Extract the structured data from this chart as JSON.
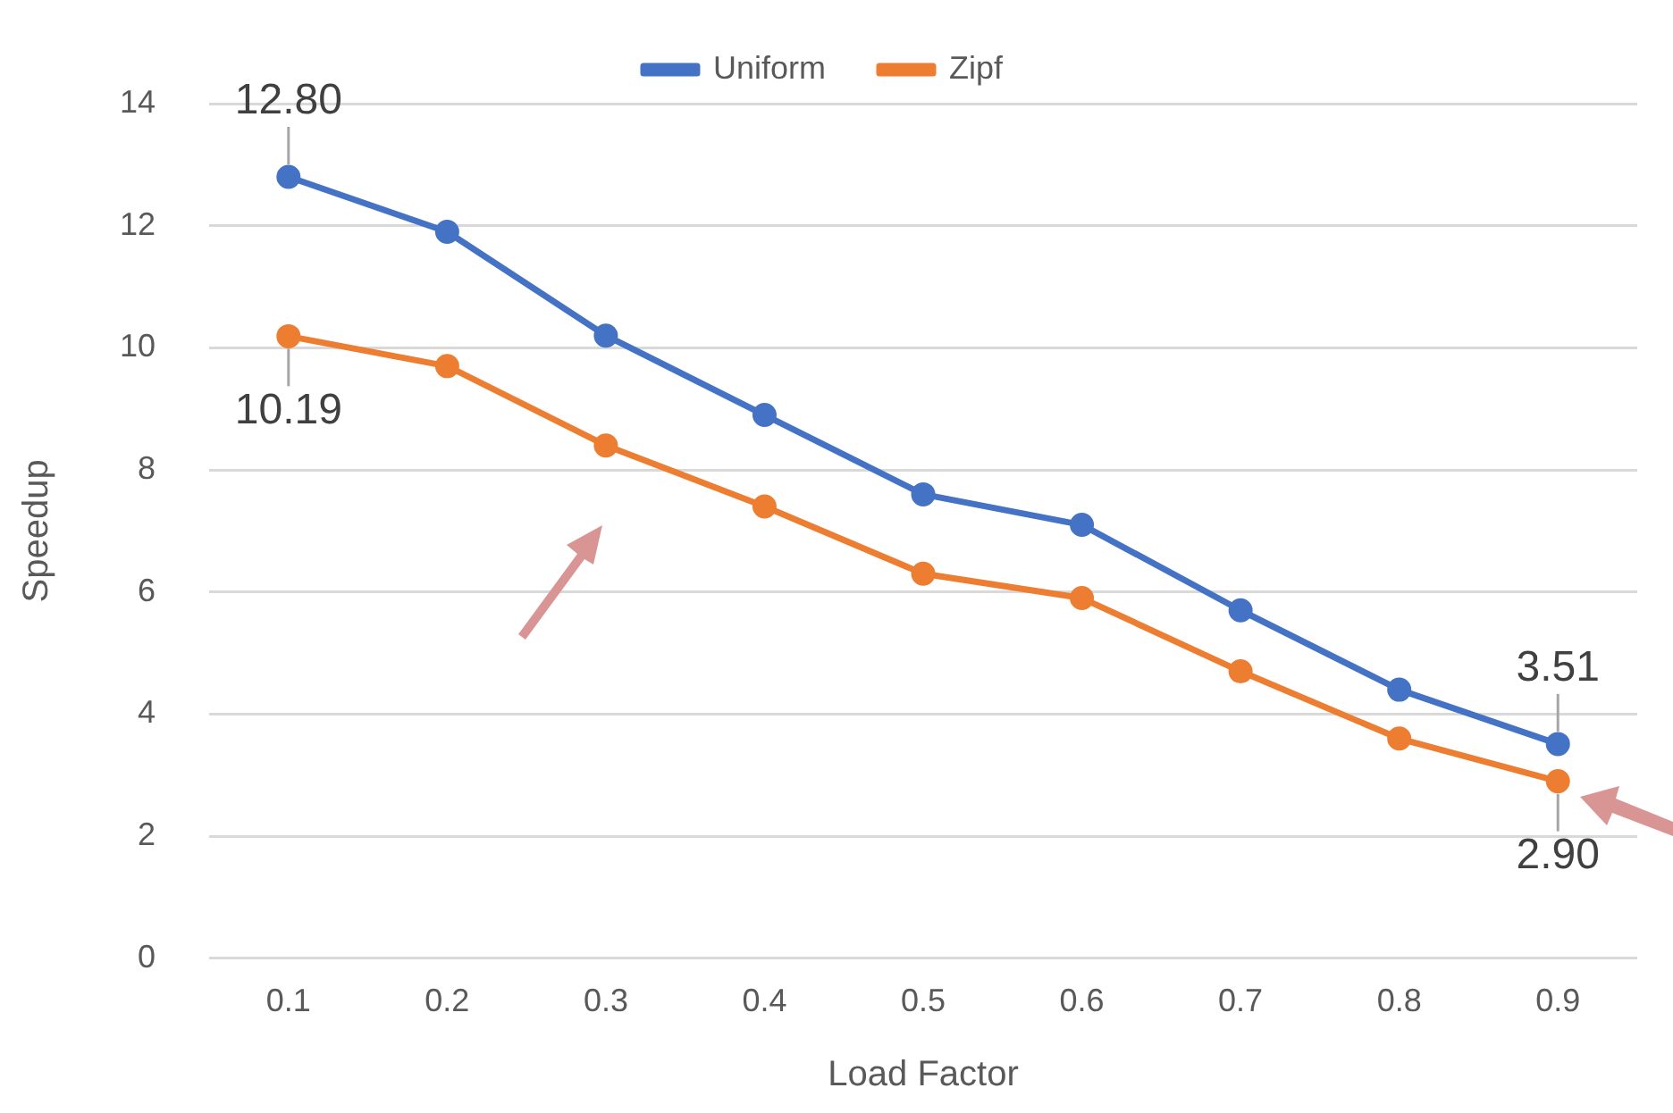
{
  "chart_data": {
    "type": "line",
    "xlabel": "Load Factor",
    "ylabel": "Speedup",
    "categories": [
      "0.1",
      "0.2",
      "0.3",
      "0.4",
      "0.5",
      "0.6",
      "0.7",
      "0.8",
      "0.9"
    ],
    "series": [
      {
        "name": "Uniform",
        "color": "#4472c4",
        "values": [
          12.8,
          11.9,
          10.2,
          8.9,
          7.6,
          7.1,
          5.7,
          4.4,
          3.51
        ],
        "value_labels": [
          "12.80",
          null,
          null,
          null,
          null,
          null,
          null,
          null,
          "3.51"
        ]
      },
      {
        "name": "Zipf",
        "color": "#ed7d31",
        "values": [
          10.19,
          9.7,
          8.4,
          7.4,
          6.3,
          5.9,
          4.7,
          3.6,
          2.9
        ],
        "value_labels": [
          "10.19",
          null,
          null,
          null,
          null,
          null,
          null,
          null,
          "2.90"
        ]
      }
    ],
    "ylim": [
      0,
      14
    ],
    "yticks": [
      0,
      2,
      4,
      6,
      8,
      10,
      12,
      14
    ],
    "grid": "y",
    "legend": "top",
    "marker": "circle",
    "line_style": "solid"
  }
}
